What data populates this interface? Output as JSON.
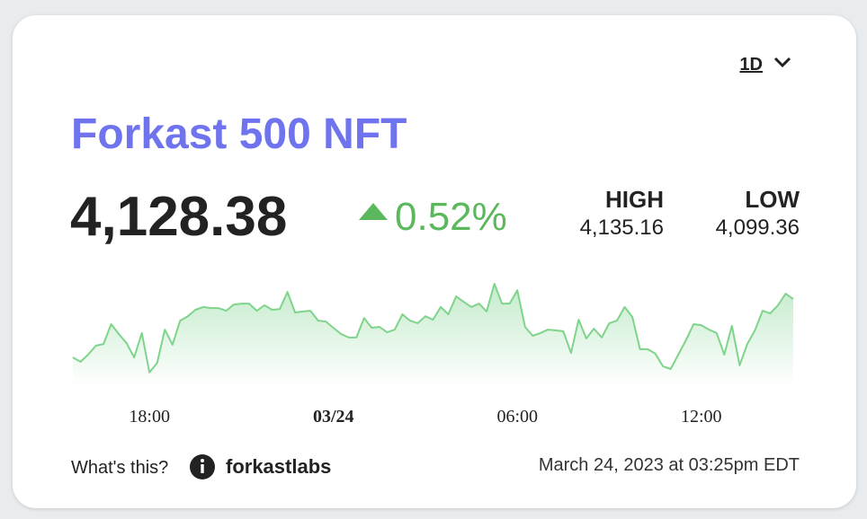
{
  "header": {
    "range": "1D",
    "title": "Forkast 500 NFT"
  },
  "quote": {
    "price": "4,128.38",
    "change": "0.52%",
    "high_label": "HIGH",
    "high": "4,135.16",
    "low_label": "LOW",
    "low": "4,099.36"
  },
  "chart_data": {
    "type": "area",
    "color": "#7fd48b",
    "values": [
      4105.5,
      4103.7,
      4106.6,
      4110.2,
      4110.9,
      4118.9,
      4114.9,
      4111.3,
      4105.5,
      4115.3,
      4099.4,
      4103.3,
      4116.7,
      4110.6,
      4120.3,
      4122.1,
      4124.7,
      4125.8,
      4125.4,
      4125.4,
      4124.3,
      4126.8,
      4127.2,
      4127.2,
      4124.3,
      4126.5,
      4124.7,
      4125.0,
      4131.9,
      4123.6,
      4124.0,
      4124.3,
      4120.3,
      4120.0,
      4117.4,
      4114.9,
      4113.5,
      4113.5,
      4121.4,
      4117.4,
      4117.8,
      4115.6,
      4116.7,
      4122.9,
      4120.3,
      4119.3,
      4122.1,
      4120.7,
      4125.8,
      4122.9,
      4130.1,
      4127.9,
      4125.8,
      4127.2,
      4124.0,
      4135.2,
      4127.2,
      4127.2,
      4132.6,
      4117.8,
      4114.2,
      4115.3,
      4116.7,
      4116.4,
      4116.0,
      4107.3,
      4120.7,
      4113.1,
      4117.1,
      4113.5,
      4119.3,
      4120.3,
      4125.8,
      4121.8,
      4108.8,
      4108.8,
      4107.0,
      4101.9,
      4100.8,
      4106.6,
      4112.4,
      4118.9,
      4118.5,
      4116.7,
      4115.3,
      4106.6,
      4118.2,
      4102.3,
      4110.9,
      4116.4,
      4124.3,
      4123.2,
      4126.5,
      4131.2,
      4129.0
    ],
    "xlim": [
      0,
      94
    ],
    "ylim": [
      4093.9,
      4135.2
    ],
    "xticks": [
      {
        "value": 10,
        "label": "18:00"
      },
      {
        "value": 34,
        "label": "03/24"
      },
      {
        "value": 58,
        "label": "06:00"
      },
      {
        "value": 82,
        "label": "12:00"
      }
    ]
  },
  "footer": {
    "help": "What's this?",
    "source": "forkastlabs",
    "timestamp": "March 24, 2023 at 03:25pm EDT"
  }
}
